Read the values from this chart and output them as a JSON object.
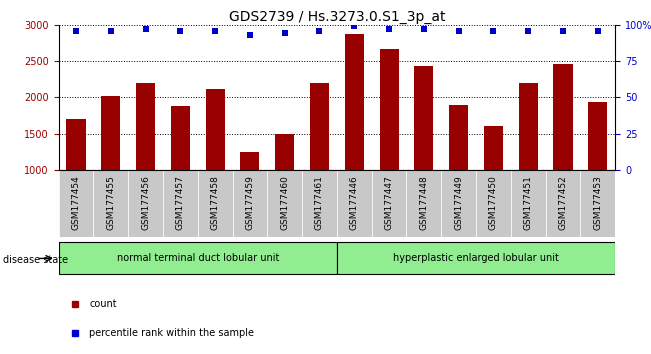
{
  "title": "GDS2739 / Hs.3273.0.S1_3p_at",
  "categories": [
    "GSM177454",
    "GSM177455",
    "GSM177456",
    "GSM177457",
    "GSM177458",
    "GSM177459",
    "GSM177460",
    "GSM177461",
    "GSM177446",
    "GSM177447",
    "GSM177448",
    "GSM177449",
    "GSM177450",
    "GSM177451",
    "GSM177452",
    "GSM177453"
  ],
  "bar_values": [
    1700,
    2020,
    2200,
    1880,
    2120,
    1250,
    1500,
    2200,
    2870,
    2670,
    2430,
    1890,
    1600,
    2200,
    2460,
    1940
  ],
  "percentile_values": [
    96,
    96,
    97,
    96,
    96,
    93,
    94,
    96,
    99,
    97,
    97,
    96,
    96,
    96,
    96,
    96
  ],
  "bar_color": "#990000",
  "percentile_color": "#0000cc",
  "ylim_left": [
    1000,
    3000
  ],
  "ylim_right": [
    0,
    100
  ],
  "yticks_left": [
    1000,
    1500,
    2000,
    2500,
    3000
  ],
  "yticks_right": [
    0,
    25,
    50,
    75,
    100
  ],
  "group1_label": "normal terminal duct lobular unit",
  "group2_label": "hyperplastic enlarged lobular unit",
  "group1_count": 8,
  "group2_count": 8,
  "disease_state_label": "disease state",
  "legend_count_label": "count",
  "legend_percentile_label": "percentile rank within the sample",
  "group_color": "#90ee90",
  "tick_bg_color": "#c8c8c8",
  "title_fontsize": 10,
  "tick_fontsize": 7,
  "label_fontsize": 8
}
